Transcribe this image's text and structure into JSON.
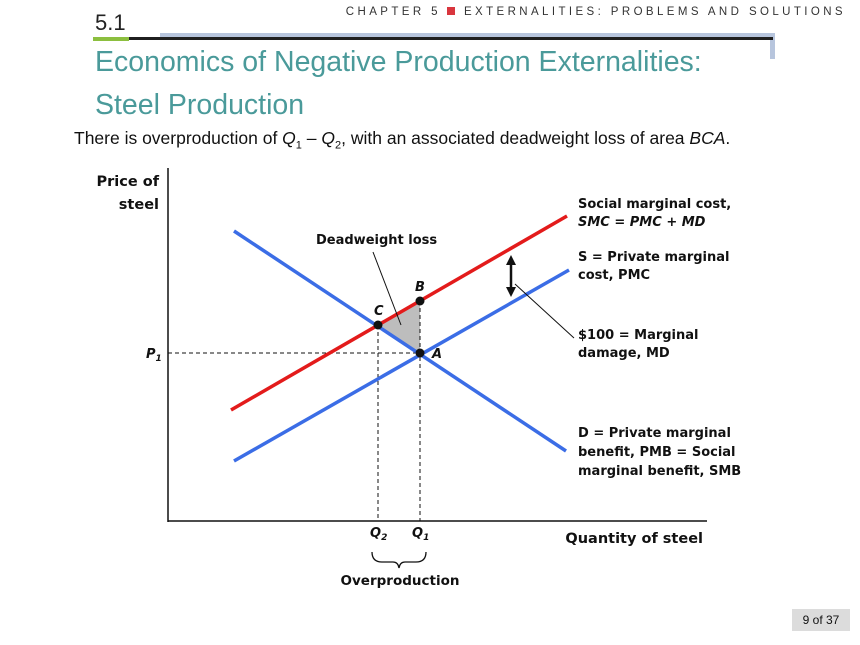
{
  "header": {
    "chapter_text": "CHAPTER 5",
    "chapter_subtitle": "EXTERNALITIES: PROBLEMS AND SOLUTIONS",
    "section_number": "5.1"
  },
  "title": {
    "line1": "Economics of Negative Production Externalities:",
    "line2": "Steel Production"
  },
  "subtitle": {
    "part1": "There is overproduction of ",
    "q1": "Q",
    "q1_sub": "1",
    "dash": " – ",
    "q2": "Q",
    "q2_sub": "2",
    "part2": ", with an associated deadweight loss of area ",
    "area": "BCA",
    "end": "."
  },
  "chart_data": {
    "type": "line",
    "ylabel_line1": "Price of",
    "ylabel_line2": "steel",
    "xlabel": "Quantity of steel",
    "p1_label": "P",
    "p1_sub": "1",
    "q2_label": "Q",
    "q2_sub": "2",
    "q1_label": "Q",
    "q1_sub": "1",
    "series": [
      {
        "key": "demand",
        "color": "#3b6de6",
        "label_line1": "D = Private marginal",
        "label_line2": "benefit, PMB = Social",
        "label_line3": "marginal benefit, SMB"
      },
      {
        "key": "supply",
        "color": "#3b6de6",
        "label_line1": "S = Private marginal",
        "label_line2": "cost, PMC"
      },
      {
        "key": "smc",
        "color": "#e31b1b",
        "label_line1": "Social marginal cost,",
        "label_line2": "SMC = PMC + MD"
      }
    ],
    "points": {
      "A": "A",
      "B": "B",
      "C": "C"
    },
    "annotations": {
      "deadweight_loss": "Deadweight loss",
      "md_line1": "$100 = Marginal",
      "md_line2": "damage, MD",
      "overproduction": "Overproduction"
    },
    "deadweight_fill": "#bdbdbd"
  },
  "footer": {
    "page": "9 of 37"
  }
}
